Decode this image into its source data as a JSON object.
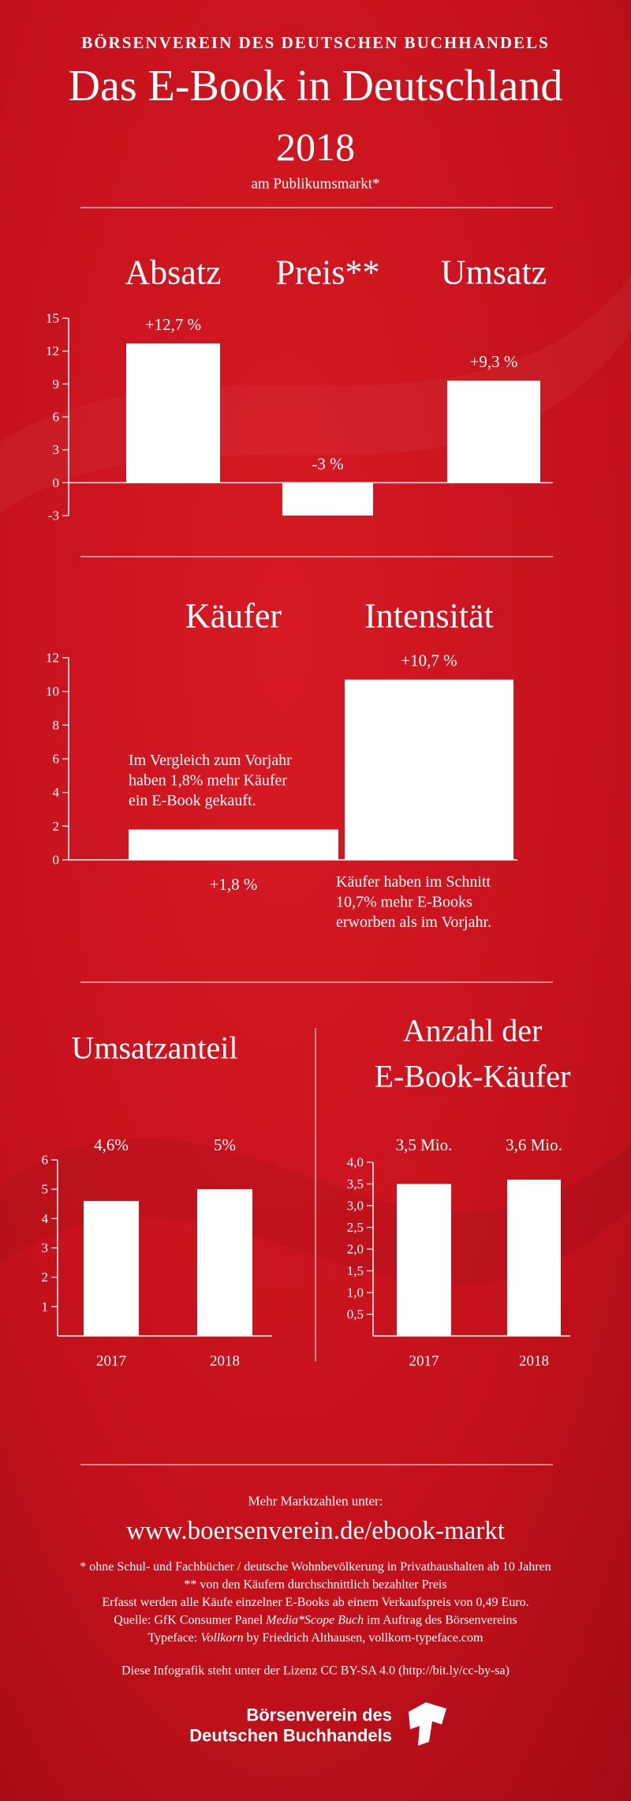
{
  "header": {
    "kicker": "BÖRSENVEREIN DES DEUTSCHEN BUCHHANDELS",
    "title": "Das E-Book in Deutschland",
    "year": "2018",
    "subtitle": "am Publikumsmarkt*"
  },
  "chart_data": [
    {
      "type": "bar",
      "categories": [
        "Absatz",
        "Preis**",
        "Umsatz"
      ],
      "values": [
        12.7,
        -3,
        9.3
      ],
      "value_labels": [
        "+12,7 %",
        "-3 %",
        "+9,3 %"
      ],
      "color": "#ffffff",
      "ylim": [
        -3,
        15
      ],
      "yticks": [
        15,
        12,
        9,
        6,
        3,
        0,
        -3
      ]
    },
    {
      "type": "bar",
      "categories": [
        "Käufer",
        "Intensität"
      ],
      "values": [
        1.8,
        10.7
      ],
      "value_labels": [
        "+1,8 %",
        "+10,7 %"
      ],
      "color": "#ffffff",
      "ylim": [
        0,
        12
      ],
      "yticks": [
        12,
        10,
        8,
        6,
        4,
        2,
        0
      ],
      "annotations": [
        [
          "Im Vergleich zum Vorjahr",
          "haben 1,8% mehr Käufer",
          "ein E-Book gekauft."
        ],
        [
          "Käufer haben im Schnitt",
          "10,7% mehr E-Books",
          "erworben als im Vorjahr."
        ]
      ]
    },
    {
      "type": "bar",
      "title": "Umsatzanteil",
      "categories": [
        "2017",
        "2018"
      ],
      "values": [
        4.6,
        5
      ],
      "value_labels": [
        "4,6%",
        "5%"
      ],
      "color": "#ffffff",
      "ylim": [
        0,
        6
      ],
      "yticks": [
        6,
        5,
        4,
        3,
        2,
        1
      ]
    },
    {
      "type": "bar",
      "title": [
        "Anzahl der",
        "E-Book-Käufer"
      ],
      "categories": [
        "2017",
        "2018"
      ],
      "values": [
        3.5,
        3.6
      ],
      "value_labels": [
        "3,5 Mio.",
        "3,6 Mio."
      ],
      "color": "#ffffff",
      "ylim": [
        0,
        4
      ],
      "yticks": [
        {
          "value": 4,
          "label": "4,0"
        },
        {
          "value": 3.5,
          "label": "3,5"
        },
        {
          "value": 3,
          "label": "3,0"
        },
        {
          "value": 2.5,
          "label": "2,5"
        },
        {
          "value": 2,
          "label": "2,0"
        },
        {
          "value": 1.5,
          "label": "1,5"
        },
        {
          "value": 1,
          "label": "1,0"
        },
        {
          "value": 0.5,
          "label": "0,5"
        }
      ]
    }
  ],
  "footer": {
    "more": "Mehr Marktzahlen unter:",
    "url": "www.boersenverein.de/ebook-markt",
    "notes": [
      [
        {
          "text": "* ohne Schul- und Fachbücher / deutsche Wohnbevölkerung in Privathaushalten ab 10 Jahren"
        }
      ],
      [
        {
          "text": "** von den Käufern durchschnittlich bezahlter Preis"
        }
      ],
      [
        {
          "text": "Erfasst werden alle Käufe einzelner E-Books ab einem Verkaufspreis von 0,49 Euro."
        }
      ],
      [
        {
          "text": "Quelle: GfK Consumer Panel "
        },
        {
          "text": "Media*Scope Buch",
          "italic": true
        },
        {
          "text": " im Auftrag des Börsenvereins"
        }
      ],
      [
        {
          "text": "Typeface: "
        },
        {
          "text": "Vollkorn",
          "italic": true
        },
        {
          "text": " by Friedrich Althausen, vollkorn-typeface.com"
        }
      ]
    ],
    "license": "Diese Infografik steht unter der Lizenz CC BY-SA 4.0 (http://bit.ly/cc-by-sa)",
    "logo": [
      "Börsenverein des",
      "Deutschen Buchhandels"
    ]
  }
}
